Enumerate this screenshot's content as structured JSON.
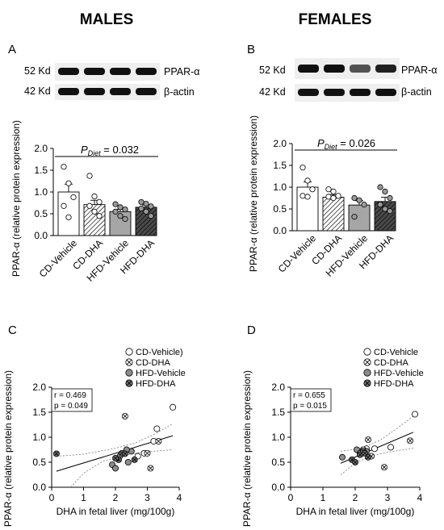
{
  "titles": {
    "males": "MALES",
    "females": "FEMALES"
  },
  "panels": {
    "A": "A",
    "B": "B",
    "C": "C",
    "D": "D"
  },
  "blot": {
    "kd_52": "52 Kd",
    "kd_42": "42 Kd",
    "ppar": "PPAR-α",
    "actin": "β-actin",
    "males_ppar_intensity": [
      1.0,
      1.0,
      1.0,
      1.0
    ],
    "females_ppar_intensity": [
      1.0,
      1.0,
      0.55,
      0.9
    ]
  },
  "pdiet": {
    "males": {
      "prefix": "P",
      "sub": "Diet",
      "rest": " = 0.032"
    },
    "females": {
      "prefix": "P",
      "sub": "Diet",
      "rest": " = 0.026"
    }
  },
  "colors": {
    "cd_vehicle": "#ffffff",
    "cd_dha": "#ffffff",
    "hfd_vehicle": "#a6a6a6",
    "hfd_dha": "#404040",
    "axis": "#000000",
    "ci_band": "#777777"
  },
  "chart_data": [
    {
      "id": "A",
      "type": "bar",
      "ylabel": "PPAR-α (relative protein expression)",
      "ylim": [
        0,
        2.0
      ],
      "yticks": [
        "0.0",
        "0.5",
        "1.0",
        "1.5",
        "2.0"
      ],
      "categories": [
        "CD-Vehicle",
        "CD-DHA",
        "HFD-Vehicle",
        "HFD-DHA"
      ],
      "values": [
        1.0,
        0.71,
        0.55,
        0.65
      ],
      "sem": [
        0.18,
        0.1,
        0.05,
        0.05
      ],
      "points": [
        [
          1.58,
          1.2,
          0.88,
          0.68,
          0.42
        ],
        [
          1.37,
          0.9,
          0.77,
          0.68,
          0.55,
          0.45
        ],
        [
          0.72,
          0.65,
          0.6,
          0.55,
          0.45,
          0.38
        ],
        [
          0.77,
          0.73,
          0.67,
          0.62,
          0.55,
          0.45
        ]
      ],
      "significance": "P_Diet = 0.032"
    },
    {
      "id": "B",
      "type": "bar",
      "ylabel": "PPAR-α (relative protein expression)",
      "ylim": [
        0,
        2.0
      ],
      "yticks": [
        "0.0",
        "0.5",
        "1.0",
        "1.5",
        "2.0"
      ],
      "categories": [
        "CD-Vehicle",
        "CD-DHA",
        "HFD-Vehicle",
        "HFD-DHA"
      ],
      "values": [
        1.0,
        0.77,
        0.59,
        0.67
      ],
      "sem": [
        0.12,
        0.06,
        0.1,
        0.1
      ],
      "points": [
        [
          1.45,
          1.15,
          0.95,
          0.8,
          0.78
        ],
        [
          0.95,
          0.9,
          0.8,
          0.78,
          0.75
        ],
        [
          0.75,
          0.7,
          0.6,
          0.32
        ],
        [
          1.0,
          0.9,
          0.75,
          0.6,
          0.5,
          0.45
        ]
      ],
      "significance": "P_Diet = 0.026"
    },
    {
      "id": "C",
      "type": "scatter",
      "xlabel": "DHA in fetal liver (mg/100g)",
      "ylabel": "PPAR-α (relative protein expression)",
      "xlim": [
        0,
        4
      ],
      "ylim": [
        0,
        2.0
      ],
      "xticks": [
        "0",
        "1",
        "2",
        "3",
        "4"
      ],
      "yticks": [
        "0.0",
        "0.5",
        "1.0",
        "1.5",
        "2.0"
      ],
      "r_text": "r = 0.469",
      "p_text": "p = 0.049",
      "legend": [
        "CD-Vehicle)",
        "CD-DHA",
        "HFD-Vehicle",
        "HFD-DHA"
      ],
      "fit": {
        "x": [
          0.15,
          3.8
        ],
        "y": [
          0.32,
          1.03
        ]
      },
      "ci_upper": [
        [
          0.15,
          0.62
        ],
        [
          1.0,
          0.66
        ],
        [
          2.0,
          0.78
        ],
        [
          2.6,
          0.88
        ],
        [
          3.2,
          1.05
        ],
        [
          3.8,
          1.27
        ]
      ],
      "ci_lower": [
        [
          0.6,
          0.0
        ],
        [
          1.0,
          0.28
        ],
        [
          1.6,
          0.52
        ],
        [
          2.2,
          0.63
        ],
        [
          2.8,
          0.7
        ],
        [
          3.8,
          0.75
        ]
      ],
      "series": [
        {
          "name": "CD-Vehicle",
          "x": [
            3.8,
            3.3,
            2.7,
            2.9,
            3.2
          ],
          "y": [
            1.6,
            1.17,
            0.62,
            0.68,
            0.92
          ]
        },
        {
          "name": "CD-DHA",
          "x": [
            2.3,
            3.35,
            3.0,
            3.1
          ],
          "y": [
            1.42,
            0.92,
            0.68,
            0.38
          ]
        },
        {
          "name": "HFD-Vehicle",
          "x": [
            1.9,
            2.0,
            2.4,
            2.5,
            2.15,
            2.35
          ],
          "y": [
            0.45,
            0.38,
            0.5,
            0.72,
            0.63,
            0.75
          ]
        },
        {
          "name": "HFD-DHA",
          "x": [
            0.15,
            2.1,
            2.2,
            2.6,
            2.3,
            2.0
          ],
          "y": [
            0.67,
            0.55,
            0.68,
            0.55,
            0.67,
            0.58
          ]
        }
      ]
    },
    {
      "id": "D",
      "type": "scatter",
      "xlabel": "DHA in fetal liver (mg/100g)",
      "ylabel": "PPAR-α (relative protein expression)",
      "xlim": [
        0,
        4
      ],
      "ylim": [
        0,
        2.0
      ],
      "xticks": [
        "0",
        "1",
        "2",
        "3",
        "4"
      ],
      "yticks": [
        "0.0",
        "0.5",
        "1.0",
        "1.5",
        "2.0"
      ],
      "r_text": "r = 0.655",
      "p_text": "p = 0.015",
      "legend": [
        "CD-Vehicle",
        "CD-DHA",
        "HFD-Vehicle",
        "HFD-DHA"
      ],
      "fit": {
        "x": [
          1.55,
          3.8
        ],
        "y": [
          0.48,
          1.1
        ]
      },
      "ci_upper": [
        [
          1.55,
          0.72
        ],
        [
          2.2,
          0.78
        ],
        [
          2.8,
          0.95
        ],
        [
          3.3,
          1.18
        ],
        [
          3.8,
          1.42
        ]
      ],
      "ci_lower": [
        [
          1.55,
          0.25
        ],
        [
          2.0,
          0.48
        ],
        [
          2.5,
          0.63
        ],
        [
          3.0,
          0.7
        ],
        [
          3.8,
          0.78
        ]
      ],
      "series": [
        {
          "name": "CD-Vehicle",
          "x": [
            3.85,
            3.1,
            2.6,
            2.35,
            2.2
          ],
          "y": [
            1.46,
            0.8,
            0.77,
            0.77,
            0.68
          ]
        },
        {
          "name": "CD-DHA",
          "x": [
            3.7,
            2.9,
            2.25,
            2.5,
            2.4
          ],
          "y": [
            0.93,
            0.4,
            0.75,
            0.62,
            0.95
          ]
        },
        {
          "name": "HFD-Vehicle",
          "x": [
            1.6,
            2.05,
            2.35,
            2.15
          ],
          "y": [
            0.6,
            0.75,
            0.72,
            0.68
          ]
        },
        {
          "name": "HFD-DHA",
          "x": [
            1.9,
            2.0,
            2.15,
            2.25,
            2.3,
            2.4
          ],
          "y": [
            0.55,
            0.5,
            0.65,
            0.72,
            0.68,
            0.6
          ]
        }
      ]
    }
  ]
}
